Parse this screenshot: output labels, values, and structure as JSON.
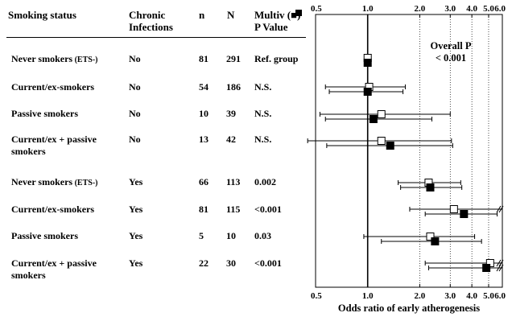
{
  "table": {
    "headers": {
      "status": "Smoking status",
      "infections": "Chronic\nInfections",
      "n": "n",
      "N": "N",
      "p": "Multiv (■)\nP Value"
    },
    "rows": [
      {
        "status": "Never smokers",
        "status_note": "(ETS-)",
        "infections": "No",
        "n": "81",
        "N": "291",
        "p": "Ref. group"
      },
      {
        "status": "Current/ex-smokers",
        "status_note": "",
        "infections": "No",
        "n": "54",
        "N": "186",
        "p": "N.S."
      },
      {
        "status": "Passive smokers",
        "status_note": "",
        "infections": "No",
        "n": "10",
        "N": "39",
        "p": "N.S."
      },
      {
        "status": "Current/ex + passive",
        "status_line2": "smokers",
        "status_note": "",
        "infections": "No",
        "n": "13",
        "N": "42",
        "p": "N.S."
      },
      {
        "status": "Never smokers",
        "status_note": "(ETS-)",
        "infections": "Yes",
        "n": "66",
        "N": "113",
        "p": "0.002"
      },
      {
        "status": "Current/ex-smokers",
        "status_note": "",
        "infections": "Yes",
        "n": "81",
        "N": "115",
        "p": "<0.001"
      },
      {
        "status": "Passive smokers",
        "status_note": "",
        "infections": "Yes",
        "n": "5",
        "N": "10",
        "p": "0.03"
      },
      {
        "status": "Current/ex + passive",
        "status_line2": "smokers",
        "status_note": "",
        "infections": "Yes",
        "n": "22",
        "N": "30",
        "p": "<0.001"
      }
    ]
  },
  "chart_data": {
    "type": "scatter",
    "subtype": "forest-plot",
    "xlabel": "Odds ratio of early atherogenesis",
    "xlim": [
      0.5,
      6.0
    ],
    "x_ticks": [
      "0.5",
      "1.0",
      "2.0",
      "3.0",
      "4.0",
      "5.0",
      "6.0"
    ],
    "x_scale": "log",
    "ticks_top_and_bottom": true,
    "grid": "vertical dotted at 2.0–6.0, solid reference line at 1.0",
    "annotation": "Overall P\n< 0.001",
    "legend_note": "open square = univariate, filled square = multivariate",
    "reference_value": 1.0,
    "series": [
      {
        "marker": "open-square",
        "values": [
          1.0,
          1.02,
          1.2,
          1.2,
          2.25,
          3.15,
          2.3,
          5.1
        ],
        "ci": [
          [
            null,
            null
          ],
          [
            0.57,
            1.65
          ],
          [
            0.53,
            3.0
          ],
          [
            0.45,
            3.05
          ],
          [
            1.5,
            3.45
          ],
          [
            1.75,
            6.0
          ],
          [
            0.95,
            4.15
          ],
          [
            2.15,
            6.0
          ]
        ],
        "ci_truncated_right": [
          false,
          false,
          false,
          false,
          false,
          true,
          false,
          true
        ]
      },
      {
        "marker": "filled-square",
        "values": [
          1.0,
          1.0,
          1.08,
          1.35,
          2.3,
          3.6,
          2.45,
          4.85
        ],
        "ci": [
          [
            null,
            null
          ],
          [
            0.6,
            1.6
          ],
          [
            0.57,
            2.35
          ],
          [
            0.58,
            3.1
          ],
          [
            1.55,
            3.5
          ],
          [
            2.15,
            5.6
          ],
          [
            1.2,
            4.55
          ],
          [
            2.25,
            6.0
          ]
        ],
        "ci_truncated_right": [
          false,
          false,
          false,
          false,
          false,
          false,
          false,
          true
        ]
      }
    ]
  }
}
